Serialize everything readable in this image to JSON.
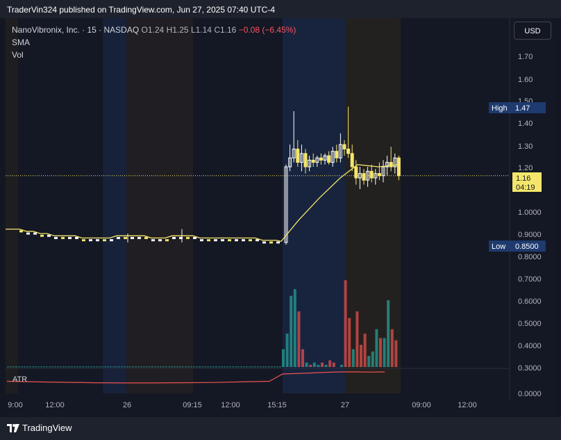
{
  "header": {
    "publish_text": "TraderVin324 published on TradingView.com, Jun 27, 2025 07:40 UTC-4"
  },
  "legend": {
    "symbol": "NanoVibronix, Inc. · 15 · NASDAQ",
    "open": "O1.24",
    "high": "H1.25",
    "low": "L1.14",
    "close": "C1.16",
    "change": "−0.08 (−6.45%)",
    "sma_label": "SMA",
    "vol_label": "Vol"
  },
  "currency_button": "USD",
  "atr_label": "ATR",
  "footer": {
    "brand": "TradingView",
    "logo_icon": "tradingview-logo-icon"
  },
  "price_axis": {
    "labels": [
      "1.70",
      "1.60",
      "1.50",
      "1.40",
      "1.30",
      "1.20",
      "1.0000",
      "0.9000",
      "0.8000",
      "0.7000",
      "0.6000",
      "0.5000",
      "0.4000",
      "0.3000",
      "0.0000"
    ],
    "high_tag": {
      "label": "High",
      "value": "1.47"
    },
    "low_tag": {
      "label": "Low",
      "value": "0.8500"
    },
    "last_tag": {
      "value": "1.16",
      "countdown": "04:19"
    }
  },
  "colors": {
    "up": "#26a69a",
    "down": "#ef5350",
    "candle_up": "#ffffff",
    "candle_down": "#f5e66b",
    "sma": "#f5e66b",
    "atr": "#ef5350",
    "session_blue": "#1a2a4a",
    "session_brown": "#2a2520"
  },
  "chart_data": {
    "type": "candlestick",
    "x_ticks": [
      "9:00",
      "12:00",
      "26",
      "09:15",
      "12:00",
      "15:15",
      "27",
      "09:00",
      "12:00"
    ],
    "y_ticks": [
      "1.70",
      "1.60",
      "1.50",
      "1.40",
      "1.30",
      "1.20",
      "1.0000",
      "0.9000",
      "0.8000",
      "0.7000",
      "0.6000",
      "0.5000",
      "0.4000",
      "0.3000"
    ],
    "flat_close": [
      0.91,
      0.9,
      0.9,
      0.89,
      0.89,
      0.88,
      0.88,
      0.88,
      0.88,
      0.87,
      0.87,
      0.87,
      0.87,
      0.87,
      0.88,
      0.88,
      0.88,
      0.88,
      0.88,
      0.87,
      0.87,
      0.87,
      0.88,
      0.88,
      0.88,
      0.88,
      0.87,
      0.87,
      0.87,
      0.87,
      0.87,
      0.87,
      0.87,
      0.87,
      0.87,
      0.86,
      0.86,
      0.86
    ],
    "active_candles": [
      {
        "o": 0.86,
        "h": 1.21,
        "l": 0.85,
        "c": 1.2
      },
      {
        "o": 1.2,
        "h": 1.3,
        "l": 1.18,
        "c": 1.24
      },
      {
        "o": 1.24,
        "h": 1.45,
        "l": 1.22,
        "c": 1.28
      },
      {
        "o": 1.28,
        "h": 1.32,
        "l": 1.2,
        "c": 1.22
      },
      {
        "o": 1.22,
        "h": 1.3,
        "l": 1.18,
        "c": 1.26
      },
      {
        "o": 1.26,
        "h": 1.28,
        "l": 1.17,
        "c": 1.2
      },
      {
        "o": 1.2,
        "h": 1.25,
        "l": 1.18,
        "c": 1.23
      },
      {
        "o": 1.23,
        "h": 1.26,
        "l": 1.2,
        "c": 1.22
      },
      {
        "o": 1.22,
        "h": 1.25,
        "l": 1.2,
        "c": 1.24
      },
      {
        "o": 1.24,
        "h": 1.26,
        "l": 1.21,
        "c": 1.23
      },
      {
        "o": 1.23,
        "h": 1.26,
        "l": 1.21,
        "c": 1.25
      },
      {
        "o": 1.25,
        "h": 1.27,
        "l": 1.21,
        "c": 1.22
      },
      {
        "o": 1.22,
        "h": 1.29,
        "l": 1.2,
        "c": 1.27
      },
      {
        "o": 1.27,
        "h": 1.3,
        "l": 1.22,
        "c": 1.24
      },
      {
        "o": 1.24,
        "h": 1.35,
        "l": 1.22,
        "c": 1.3
      },
      {
        "o": 1.3,
        "h": 1.32,
        "l": 1.25,
        "c": 1.28
      },
      {
        "o": 1.28,
        "h": 1.47,
        "l": 1.24,
        "c": 1.26
      },
      {
        "o": 1.26,
        "h": 1.3,
        "l": 1.18,
        "c": 1.2
      },
      {
        "o": 1.2,
        "h": 1.23,
        "l": 1.12,
        "c": 1.15
      },
      {
        "o": 1.15,
        "h": 1.2,
        "l": 1.1,
        "c": 1.17
      },
      {
        "o": 1.17,
        "h": 1.19,
        "l": 1.12,
        "c": 1.14
      },
      {
        "o": 1.14,
        "h": 1.2,
        "l": 1.11,
        "c": 1.18
      },
      {
        "o": 1.18,
        "h": 1.21,
        "l": 1.13,
        "c": 1.15
      },
      {
        "o": 1.15,
        "h": 1.19,
        "l": 1.12,
        "c": 1.17
      },
      {
        "o": 1.17,
        "h": 1.22,
        "l": 1.14,
        "c": 1.16
      },
      {
        "o": 1.16,
        "h": 1.23,
        "l": 1.13,
        "c": 1.2
      },
      {
        "o": 1.2,
        "h": 1.25,
        "l": 1.16,
        "c": 1.22
      },
      {
        "o": 1.22,
        "h": 1.29,
        "l": 1.18,
        "c": 1.2
      },
      {
        "o": 1.2,
        "h": 1.26,
        "l": 1.17,
        "c": 1.24
      },
      {
        "o": 1.24,
        "h": 1.25,
        "l": 1.14,
        "c": 1.16
      }
    ],
    "sma_last": 1.21,
    "volume_active": [
      {
        "v": 0.38,
        "up": true
      },
      {
        "v": 0.45,
        "up": true
      },
      {
        "v": 0.62,
        "up": true
      },
      {
        "v": 0.65,
        "up": true
      },
      {
        "v": 0.55,
        "up": false
      },
      {
        "v": 0.38,
        "up": false
      },
      {
        "v": 0.32,
        "up": true
      },
      {
        "v": 0.31,
        "up": false
      },
      {
        "v": 0.32,
        "up": true
      },
      {
        "v": 0.31,
        "up": true
      },
      {
        "v": 0.32,
        "up": false
      },
      {
        "v": 0.31,
        "up": true
      },
      {
        "v": 0.33,
        "up": false
      },
      {
        "v": 0.32,
        "up": false
      },
      {
        "v": 0.3,
        "up": true
      },
      {
        "v": 0.31,
        "up": true
      },
      {
        "v": 0.69,
        "up": false
      },
      {
        "v": 0.52,
        "up": false
      },
      {
        "v": 0.38,
        "up": true
      },
      {
        "v": 0.55,
        "up": false
      },
      {
        "v": 0.4,
        "up": false
      },
      {
        "v": 0.45,
        "up": false
      },
      {
        "v": 0.35,
        "up": true
      },
      {
        "v": 0.37,
        "up": true
      },
      {
        "v": 0.47,
        "up": true
      },
      {
        "v": 0.43,
        "up": false
      },
      {
        "v": 0.43,
        "up": true
      },
      {
        "v": 0.6,
        "up": true
      },
      {
        "v": 0.47,
        "up": false
      },
      {
        "v": 0.42,
        "up": false
      }
    ],
    "atr_points": [
      0.145,
      0.142,
      0.14,
      0.138,
      0.137,
      0.137,
      0.138,
      0.139,
      0.142,
      0.145,
      0.18,
      0.182,
      0.185,
      0.188,
      0.19,
      0.19,
      0.189,
      0.19
    ]
  }
}
